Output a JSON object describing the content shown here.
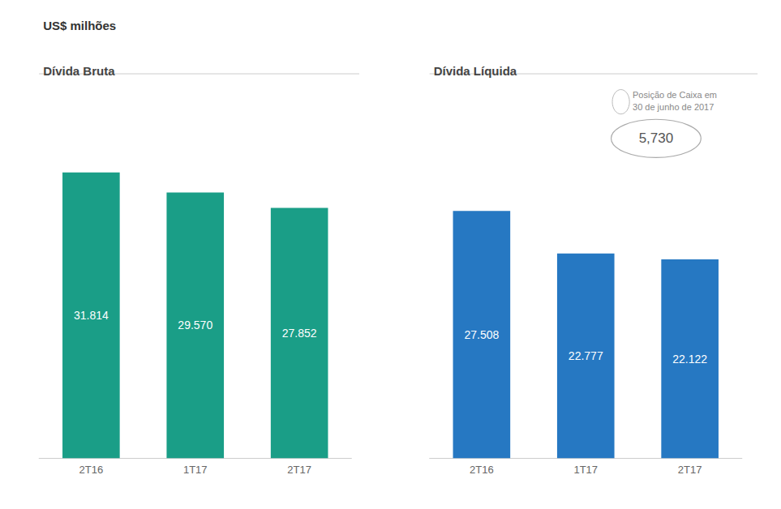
{
  "title": "US$ milhões",
  "chart_data": [
    {
      "type": "bar",
      "title": "Dívida Bruta",
      "categories": [
        "2T16",
        "1T17",
        "2T17"
      ],
      "values": [
        31.814,
        29.57,
        27.852
      ],
      "value_labels": [
        "31.814",
        "29.570",
        "27.852"
      ],
      "color": "#1a9e87",
      "ylim": [
        0,
        34
      ],
      "grid": false,
      "tick_labels": "x",
      "data_labels": true
    },
    {
      "type": "bar",
      "title": "Dívida Líquida",
      "categories": [
        "2T16",
        "1T17",
        "2T17"
      ],
      "values": [
        27.508,
        22.777,
        22.122
      ],
      "value_labels": [
        "27.508",
        "22.777",
        "22.122"
      ],
      "color": "#2678c2",
      "ylim": [
        0,
        34
      ],
      "grid": false,
      "tick_labels": "x",
      "data_labels": true,
      "annotations": [
        "Posição de Caixa em\n30 de junho de 2017",
        "5,730"
      ]
    }
  ]
}
